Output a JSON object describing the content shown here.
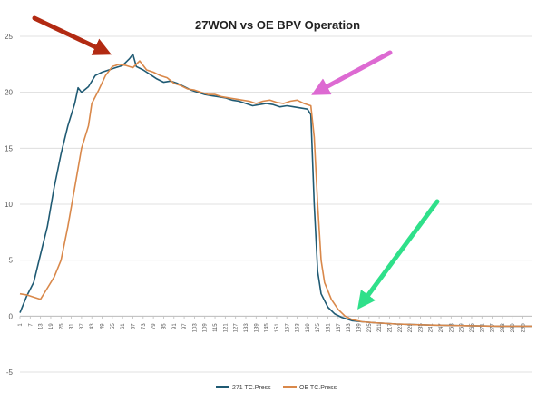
{
  "chart_data": {
    "type": "line",
    "title": "27WON vs OE BPV Operation",
    "xlabel": "",
    "ylabel": "",
    "ylim": [
      -5,
      25
    ],
    "yticks": [
      -5,
      0,
      5,
      10,
      15,
      20,
      25
    ],
    "xlim": [
      1,
      300
    ],
    "xticks": [
      1,
      7,
      13,
      19,
      25,
      31,
      37,
      43,
      49,
      55,
      61,
      67,
      73,
      79,
      85,
      91,
      97,
      103,
      109,
      115,
      121,
      127,
      133,
      139,
      145,
      151,
      157,
      163,
      169,
      175,
      181,
      187,
      193,
      199,
      205,
      211,
      217,
      223,
      229,
      235,
      241,
      247,
      253,
      259,
      265,
      271,
      277,
      283,
      289,
      295
    ],
    "grid": "horizontal",
    "legend_position": "bottom",
    "series": [
      {
        "name": "271 TC.Press",
        "color": "#1f5a73",
        "points": [
          [
            1,
            0.3
          ],
          [
            5,
            1.8
          ],
          [
            9,
            3.0
          ],
          [
            13,
            5.5
          ],
          [
            17,
            8.0
          ],
          [
            21,
            11.5
          ],
          [
            25,
            14.5
          ],
          [
            29,
            17.0
          ],
          [
            33,
            19.0
          ],
          [
            35,
            20.4
          ],
          [
            37,
            20.0
          ],
          [
            41,
            20.5
          ],
          [
            45,
            21.5
          ],
          [
            49,
            21.8
          ],
          [
            53,
            22.0
          ],
          [
            57,
            22.2
          ],
          [
            61,
            22.4
          ],
          [
            65,
            23.0
          ],
          [
            67,
            23.4
          ],
          [
            69,
            22.3
          ],
          [
            73,
            22.0
          ],
          [
            77,
            21.6
          ],
          [
            81,
            21.2
          ],
          [
            85,
            20.9
          ],
          [
            89,
            21.0
          ],
          [
            93,
            20.8
          ],
          [
            97,
            20.5
          ],
          [
            101,
            20.2
          ],
          [
            105,
            20.0
          ],
          [
            109,
            19.8
          ],
          [
            113,
            19.7
          ],
          [
            117,
            19.6
          ],
          [
            121,
            19.5
          ],
          [
            125,
            19.3
          ],
          [
            129,
            19.2
          ],
          [
            133,
            19.0
          ],
          [
            137,
            18.8
          ],
          [
            141,
            18.9
          ],
          [
            145,
            19.0
          ],
          [
            149,
            18.9
          ],
          [
            153,
            18.7
          ],
          [
            157,
            18.8
          ],
          [
            161,
            18.7
          ],
          [
            165,
            18.6
          ],
          [
            169,
            18.5
          ],
          [
            171,
            18.0
          ],
          [
            173,
            10.0
          ],
          [
            175,
            4.0
          ],
          [
            177,
            2.0
          ],
          [
            181,
            0.8
          ],
          [
            185,
            0.2
          ],
          [
            189,
            -0.1
          ],
          [
            195,
            -0.4
          ],
          [
            201,
            -0.5
          ],
          [
            209,
            -0.6
          ],
          [
            221,
            -0.7
          ],
          [
            241,
            -0.8
          ],
          [
            261,
            -0.85
          ],
          [
            281,
            -0.9
          ],
          [
            300,
            -0.9
          ]
        ]
      },
      {
        "name": "OE TC.Press",
        "color": "#d9884a",
        "points": [
          [
            1,
            2.0
          ],
          [
            5,
            1.9
          ],
          [
            9,
            1.7
          ],
          [
            13,
            1.5
          ],
          [
            17,
            2.5
          ],
          [
            21,
            3.5
          ],
          [
            25,
            5.0
          ],
          [
            29,
            8.0
          ],
          [
            33,
            11.5
          ],
          [
            37,
            15.0
          ],
          [
            41,
            17.0
          ],
          [
            43,
            19.0
          ],
          [
            47,
            20.2
          ],
          [
            51,
            21.5
          ],
          [
            55,
            22.3
          ],
          [
            59,
            22.5
          ],
          [
            63,
            22.4
          ],
          [
            67,
            22.2
          ],
          [
            71,
            22.8
          ],
          [
            75,
            22.0
          ],
          [
            79,
            21.8
          ],
          [
            83,
            21.5
          ],
          [
            87,
            21.3
          ],
          [
            91,
            20.8
          ],
          [
            95,
            20.6
          ],
          [
            99,
            20.3
          ],
          [
            103,
            20.2
          ],
          [
            107,
            20.0
          ],
          [
            111,
            19.8
          ],
          [
            115,
            19.8
          ],
          [
            119,
            19.6
          ],
          [
            123,
            19.5
          ],
          [
            127,
            19.4
          ],
          [
            131,
            19.3
          ],
          [
            135,
            19.2
          ],
          [
            139,
            19.0
          ],
          [
            143,
            19.2
          ],
          [
            147,
            19.3
          ],
          [
            151,
            19.1
          ],
          [
            155,
            19.0
          ],
          [
            159,
            19.2
          ],
          [
            163,
            19.3
          ],
          [
            167,
            19.0
          ],
          [
            171,
            18.8
          ],
          [
            173,
            16.0
          ],
          [
            175,
            10.0
          ],
          [
            177,
            5.0
          ],
          [
            179,
            3.0
          ],
          [
            183,
            1.5
          ],
          [
            187,
            0.6
          ],
          [
            191,
            0.0
          ],
          [
            195,
            -0.3
          ],
          [
            201,
            -0.5
          ],
          [
            209,
            -0.6
          ],
          [
            221,
            -0.7
          ],
          [
            241,
            -0.8
          ],
          [
            261,
            -0.85
          ],
          [
            281,
            -0.9
          ],
          [
            300,
            -0.9
          ]
        ]
      }
    ]
  },
  "annotations": [
    {
      "name": "red-arrow",
      "color": "#b22a12"
    },
    {
      "name": "magenta-arrow",
      "color": "#dd6ad2"
    },
    {
      "name": "green-arrow",
      "color": "#2fe08a"
    }
  ]
}
